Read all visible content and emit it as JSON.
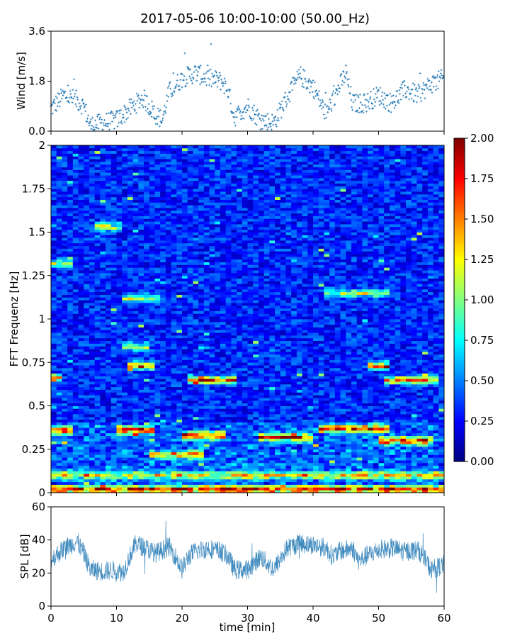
{
  "title": "2017-05-06 10:00-10:00 (50.00_Hz)",
  "chart_data": [
    {
      "type": "scatter",
      "panel": "wind",
      "ylabel": "Wind [m/s]",
      "xlim": [
        0,
        60
      ],
      "ylim": [
        0,
        3.6
      ],
      "yticks": [
        "0.0",
        "1.8",
        "3.6"
      ],
      "color": "#1f77b4",
      "marker": "+",
      "points_per_minute": 12,
      "trend_minutes": [
        0,
        2,
        4,
        5,
        6,
        8,
        10,
        12,
        14,
        16,
        17,
        18,
        20,
        22,
        24,
        26,
        27,
        28,
        30,
        32,
        34,
        36,
        38,
        40,
        42,
        44,
        45,
        46,
        48,
        50,
        52,
        54,
        56,
        58,
        60
      ],
      "trend_values": [
        0.8,
        1.3,
        1.1,
        0.9,
        0.2,
        0.3,
        0.4,
        0.8,
        1.2,
        0.6,
        0.4,
        1.4,
        1.9,
        2.1,
        1.9,
        1.8,
        1.5,
        0.5,
        0.9,
        0.4,
        0.3,
        1.2,
        2.0,
        1.6,
        0.6,
        1.6,
        2.1,
        1.0,
        1.0,
        1.3,
        1.0,
        1.5,
        1.3,
        1.7,
        1.9
      ],
      "noise_amplitude": 0.35
    },
    {
      "type": "heatmap",
      "panel": "spectrogram",
      "ylabel": "FFT Frequenz [Hz]",
      "xlim": [
        0,
        60
      ],
      "ylim": [
        0,
        2
      ],
      "yticks": [
        "0",
        "0.25",
        "0.5",
        "0.75",
        "1",
        "1.25",
        "1.5",
        "1.75",
        "2"
      ],
      "colormap": "jet",
      "vmin": 0,
      "vmax": 2,
      "colorbar_ticks": [
        "0.00",
        "0.25",
        "0.50",
        "0.75",
        "1.00",
        "1.25",
        "1.50",
        "1.75",
        "2.00"
      ],
      "time_columns": 72,
      "frequency_rows": 128,
      "background_level": 0.3,
      "hotspots": [
        {
          "f": 0.02,
          "t0": 0,
          "t1": 60,
          "level": 1.6
        },
        {
          "f": 0.36,
          "t0": 0,
          "t1": 3,
          "level": 1.5
        },
        {
          "f": 0.36,
          "t0": 10,
          "t1": 16,
          "level": 1.7
        },
        {
          "f": 0.33,
          "t0": 20,
          "t1": 27,
          "level": 1.6
        },
        {
          "f": 0.32,
          "t0": 32,
          "t1": 40,
          "level": 1.5
        },
        {
          "f": 0.37,
          "t0": 41,
          "t1": 52,
          "level": 1.5
        },
        {
          "f": 0.3,
          "t0": 50,
          "t1": 58,
          "level": 1.5
        },
        {
          "f": 0.65,
          "t0": 21,
          "t1": 28,
          "level": 1.6
        },
        {
          "f": 0.66,
          "t0": 0,
          "t1": 2,
          "level": 1.6
        },
        {
          "f": 0.73,
          "t0": 12,
          "t1": 16,
          "level": 1.5
        },
        {
          "f": 0.73,
          "t0": 48,
          "t1": 52,
          "level": 1.5
        },
        {
          "f": 0.65,
          "t0": 51,
          "t1": 59,
          "level": 1.4
        },
        {
          "f": 1.53,
          "t0": 7,
          "t1": 11,
          "level": 1.1
        },
        {
          "f": 1.32,
          "t0": 0,
          "t1": 3,
          "level": 0.9
        },
        {
          "f": 1.12,
          "t0": 11,
          "t1": 17,
          "level": 0.9
        },
        {
          "f": 1.15,
          "t0": 42,
          "t1": 52,
          "level": 0.9
        },
        {
          "f": 0.84,
          "t0": 11,
          "t1": 15,
          "level": 0.9
        },
        {
          "f": 0.22,
          "t0": 15,
          "t1": 23,
          "level": 1.1
        },
        {
          "f": 0.1,
          "t0": 0,
          "t1": 60,
          "level": 1.0
        }
      ]
    },
    {
      "type": "line",
      "panel": "spl",
      "ylabel": "SPL [dB]",
      "xlabel": "time [min]",
      "xlim": [
        0,
        60
      ],
      "ylim": [
        0,
        60
      ],
      "xticks": [
        "0",
        "10",
        "20",
        "30",
        "40",
        "50",
        "60"
      ],
      "yticks": [
        "0",
        "20",
        "40",
        "60"
      ],
      "color": "#1f77b4",
      "samples": 1400,
      "trend_minutes": [
        0,
        2,
        4,
        5,
        6,
        8,
        10,
        11,
        12,
        13,
        14,
        16,
        17,
        18,
        19,
        20,
        21,
        22,
        24,
        26,
        27,
        28,
        30,
        32,
        34,
        36,
        38,
        40,
        42,
        43,
        44,
        46,
        47,
        48,
        50,
        52,
        54,
        56,
        57,
        58,
        60
      ],
      "trend_values": [
        28,
        35,
        39,
        32,
        22,
        21,
        22,
        20,
        30,
        38,
        36,
        32,
        34,
        36,
        30,
        22,
        30,
        33,
        35,
        33,
        30,
        22,
        22,
        30,
        22,
        35,
        38,
        37,
        35,
        30,
        33,
        35,
        27,
        30,
        34,
        35,
        33,
        34,
        29,
        22,
        25
      ],
      "noise_amplitude": 6
    }
  ]
}
